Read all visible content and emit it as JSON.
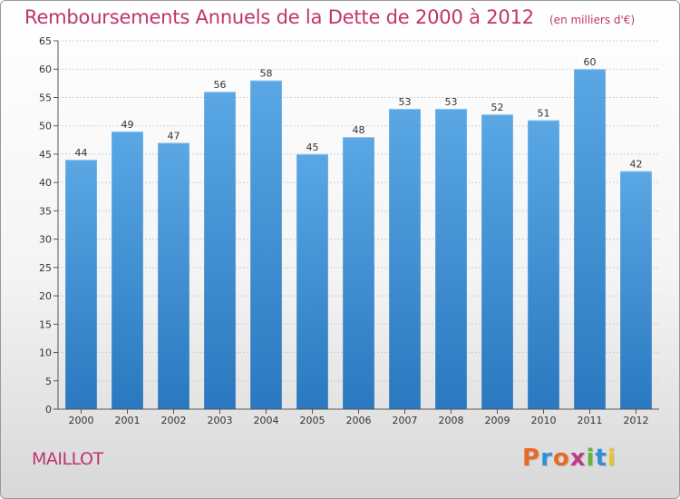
{
  "header": {
    "title": "Remboursements Annuels de la Dette de 2000 à 2012",
    "unit": "(en milliers d'€)"
  },
  "commune": "MAILLOT",
  "logo": {
    "text": "Proxiti",
    "colors": [
      "#e8682a",
      "#2f8fd8",
      "#e8682a",
      "#c03a8a",
      "#69b23c",
      "#2f8fd8",
      "#e8c22a"
    ]
  },
  "chart_data": {
    "type": "bar",
    "categories": [
      "2000",
      "2001",
      "2002",
      "2003",
      "2004",
      "2005",
      "2006",
      "2007",
      "2008",
      "2009",
      "2010",
      "2011",
      "2012"
    ],
    "values": [
      44,
      49,
      47,
      56,
      58,
      45,
      48,
      53,
      53,
      52,
      51,
      60,
      42
    ],
    "ylim": [
      0,
      65
    ],
    "yticks": [
      0,
      5,
      10,
      15,
      20,
      25,
      30,
      35,
      40,
      45,
      50,
      55,
      60,
      65
    ],
    "grid": true,
    "bar_color_top": "#5aa7e4",
    "bar_color_bottom": "#2a78bf"
  }
}
